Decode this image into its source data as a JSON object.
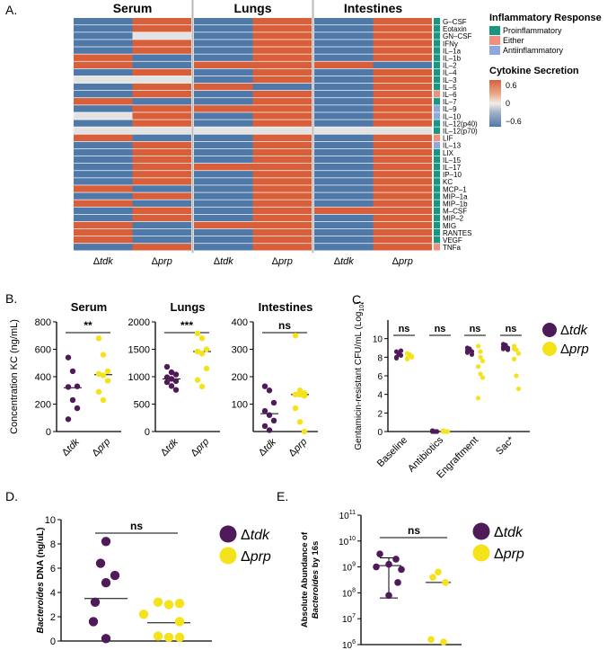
{
  "colors": {
    "high": "#d95f3a",
    "low": "#4f79a8",
    "na": "#e3e3e3",
    "proinflammatory": "#17977f",
    "either": "#ef8f7c",
    "antiinflammatory": "#8ea8dd",
    "tdk": "#4e1b58",
    "prp": "#f4e21b"
  },
  "panel_labels": {
    "a": "A.",
    "b": "B.",
    "c": "C.",
    "d": "D.",
    "e": "E."
  },
  "chart_data": [
    {
      "id": "A",
      "type": "heatmap",
      "groups": [
        "Serum",
        "Lungs",
        "Intestines"
      ],
      "conditions": [
        "Δtdk",
        "Δprp"
      ],
      "rows": [
        "G–CSF",
        "Eotaxin",
        "GN–CSF",
        "IFNγ",
        "IL–1a",
        "IL–1b",
        "IL–2",
        "IL–4",
        "IL–3",
        "IL–5",
        "IL–6",
        "IL–7",
        "IL–9",
        "IL–10",
        "IL–12(p40)",
        "IL–12(p70)",
        "LIF",
        "IL–13",
        "LIX",
        "IL–15",
        "IL–17",
        "IP–10",
        "KC",
        "MCP–1",
        "MIP–1a",
        "MIP–1b",
        "M–CSF",
        "MIP–2",
        "MIG",
        "RANTES",
        "VEGF",
        "TNFa"
      ],
      "row_class": [
        "P",
        "P",
        "P",
        "P",
        "P",
        "P",
        "P",
        "P",
        "P",
        "P",
        "E",
        "P",
        "A",
        "A",
        "P",
        "P",
        "E",
        "A",
        "P",
        "P",
        "P",
        "P",
        "P",
        "P",
        "P",
        "P",
        "P",
        "P",
        "P",
        "P",
        "P",
        "E"
      ],
      "matrix": [
        [
          "L",
          "H",
          "L",
          "H",
          "L",
          "H"
        ],
        [
          "L",
          "H",
          "L",
          "H",
          "L",
          "H"
        ],
        [
          "L",
          "N",
          "L",
          "H",
          "L",
          "H"
        ],
        [
          "L",
          "H",
          "L",
          "H",
          "L",
          "H"
        ],
        [
          "L",
          "H",
          "L",
          "H",
          "L",
          "H"
        ],
        [
          "H",
          "L",
          "L",
          "H",
          "L",
          "H"
        ],
        [
          "H",
          "L",
          "H",
          "H",
          "H",
          "L"
        ],
        [
          "L",
          "H",
          "L",
          "H",
          "L",
          "H"
        ],
        [
          "N",
          "N",
          "L",
          "H",
          "L",
          "H"
        ],
        [
          "L",
          "H",
          "H",
          "L",
          "L",
          "H"
        ],
        [
          "L",
          "H",
          "L",
          "H",
          "L",
          "H"
        ],
        [
          "H",
          "L",
          "L",
          "H",
          "L",
          "H"
        ],
        [
          "L",
          "H",
          "H",
          "H",
          "L",
          "H"
        ],
        [
          "N",
          "H",
          "L",
          "H",
          "L",
          "H"
        ],
        [
          "L",
          "H",
          "L",
          "H",
          "L",
          "H"
        ],
        [
          "N",
          "N",
          "N",
          "N",
          "N",
          "N"
        ],
        [
          "H",
          "L",
          "L",
          "H",
          "L",
          "H"
        ],
        [
          "L",
          "H",
          "L",
          "H",
          "L",
          "H"
        ],
        [
          "L",
          "H",
          "L",
          "H",
          "L",
          "H"
        ],
        [
          "L",
          "H",
          "L",
          "H",
          "L",
          "H"
        ],
        [
          "L",
          "H",
          "H",
          "H",
          "L",
          "H"
        ],
        [
          "L",
          "H",
          "L",
          "H",
          "L",
          "H"
        ],
        [
          "L",
          "H",
          "L",
          "H",
          "L",
          "H"
        ],
        [
          "H",
          "L",
          "L",
          "H",
          "L",
          "H"
        ],
        [
          "L",
          "H",
          "L",
          "H",
          "L",
          "H"
        ],
        [
          "H",
          "L",
          "L",
          "H",
          "L",
          "H"
        ],
        [
          "L",
          "H",
          "L",
          "H",
          "H",
          "H"
        ],
        [
          "L",
          "H",
          "L",
          "H",
          "L",
          "H"
        ],
        [
          "H",
          "L",
          "H",
          "H",
          "L",
          "H"
        ],
        [
          "H",
          "L",
          "L",
          "H",
          "L",
          "H"
        ],
        [
          "H",
          "L",
          "L",
          "H",
          "L",
          "H"
        ],
        [
          "L",
          "H",
          "L",
          "H",
          "L",
          "H"
        ]
      ],
      "legend": {
        "title": "Inflammatory Response",
        "items": [
          {
            "key": "proinflammatory",
            "label": "Proinflammatory"
          },
          {
            "key": "either",
            "label": "Either"
          },
          {
            "key": "antiinflammatory",
            "label": "Antiinflammatory"
          }
        ]
      },
      "colorbar": {
        "title": "Cytokine Secretion",
        "max": "0.6",
        "mid": "0",
        "min": "−0.6"
      }
    },
    {
      "id": "B",
      "type": "scatter",
      "ylabel": "Concentration KC (ng/mL)",
      "panels": [
        {
          "title": "Serum",
          "ylim": [
            0,
            800
          ],
          "ticks": [
            "0",
            "200",
            "400",
            "600",
            "800"
          ],
          "tick_values": [
            0,
            200,
            400,
            600,
            800
          ],
          "sig": "**",
          "groups": [
            {
              "name": "Δtdk",
              "color_key": "tdk",
              "median": 320,
              "values": [
                540,
                440,
                330,
                325,
                230,
                170,
                90
              ]
            },
            {
              "name": "Δprp",
              "color_key": "prp",
              "median": 415,
              "values": [
                680,
                560,
                440,
                420,
                410,
                370,
                290,
                230
              ]
            }
          ]
        },
        {
          "title": "Lungs",
          "ylim": [
            0,
            2000
          ],
          "ticks": [
            "0",
            "500",
            "1000",
            "1500",
            "2000"
          ],
          "tick_values": [
            0,
            500,
            1000,
            1500,
            2000
          ],
          "sig": "***",
          "groups": [
            {
              "name": "Δtdk",
              "color_key": "tdk",
              "median": 960,
              "values": [
                1180,
                1080,
                1040,
                990,
                960,
                920,
                900,
                830,
                760
              ]
            },
            {
              "name": "Δprp",
              "color_key": "prp",
              "median": 1460,
              "values": [
                1790,
                1700,
                1500,
                1460,
                1420,
                1150,
                940,
                820
              ]
            }
          ]
        },
        {
          "title": "Intestines",
          "ylim": [
            0,
            400
          ],
          "ticks": [
            "100",
            "200",
            "300",
            "400"
          ],
          "tick_values": [
            100,
            200,
            300,
            400
          ],
          "sig": "ns",
          "groups": [
            {
              "name": "Δtdk",
              "color_key": "tdk",
              "median": 65,
              "values": [
                165,
                150,
                105,
                75,
                60,
                40,
                20,
                5
              ]
            },
            {
              "name": "Δprp",
              "color_key": "prp",
              "median": 135,
              "values": [
                350,
                150,
                140,
                135,
                135,
                130,
                85,
                35,
                0
              ]
            }
          ]
        }
      ]
    },
    {
      "id": "C",
      "type": "scatter",
      "ylabel": "Gentamicin-resistant CFU/mL (Log",
      "ylabel_sub": "10",
      "ylabel_end": ")",
      "ylim": [
        0,
        12
      ],
      "ticks": [
        "0",
        "2",
        "4",
        "6",
        "8",
        "10"
      ],
      "tick_values": [
        0,
        2,
        4,
        6,
        8,
        10
      ],
      "categories": [
        "Baseline",
        "Antibiotics",
        "Engraftment",
        "Sac*"
      ],
      "sig": [
        "ns",
        "ns",
        "ns",
        "ns"
      ],
      "series": [
        {
          "name": "Δtdk",
          "color_key": "tdk",
          "values": [
            [
              8.6,
              8.4,
              8.2,
              8.0,
              8.3,
              8.7,
              7.9
            ],
            [
              0.1,
              0,
              0,
              0.05,
              0,
              0,
              0
            ],
            [
              9.0,
              8.8,
              8.6,
              8.5,
              8.9,
              8.3,
              8.7
            ],
            [
              9.4,
              9.2,
              9.0,
              8.9,
              9.3,
              8.8,
              9.1
            ]
          ]
        },
        {
          "name": "Δprp",
          "color_key": "prp",
          "values": [
            [
              8.4,
              8.2,
              8.0,
              7.9,
              8.3,
              8.1,
              7.8
            ],
            [
              0.1,
              0,
              0,
              0.05,
              0,
              0,
              0
            ],
            [
              9.2,
              8.0,
              7.6,
              7.0,
              6.2,
              5.8,
              3.6,
              8.6
            ],
            [
              9.2,
              8.8,
              8.4,
              7.8,
              6.0,
              4.6,
              8.9
            ]
          ]
        }
      ],
      "legend": [
        {
          "name": "Δtdk",
          "color_key": "tdk"
        },
        {
          "name": "Δprp",
          "color_key": "prp"
        }
      ]
    },
    {
      "id": "D",
      "type": "scatter",
      "ylabel_italic": "Bacteroides",
      "ylabel_rest": " DNA (ng/uL)",
      "ylim": [
        0,
        10
      ],
      "ticks": [
        "0",
        "2",
        "4",
        "6",
        "8",
        "10"
      ],
      "tick_values": [
        0,
        2,
        4,
        6,
        8,
        10
      ],
      "sig": "ns",
      "groups": [
        {
          "name": "Δtdk",
          "color_key": "tdk",
          "mean": 3.5,
          "values": [
            8.2,
            6.4,
            5.4,
            4.8,
            3.2,
            1.6,
            0.2
          ]
        },
        {
          "name": "Δprp",
          "color_key": "prp",
          "mean": 1.5,
          "values": [
            3.2,
            3.1,
            3.0,
            2.2,
            1.6,
            0.4,
            0.3,
            0.3
          ]
        }
      ],
      "legend": [
        {
          "name": "Δtdk",
          "color_key": "tdk"
        },
        {
          "name": "Δprp",
          "color_key": "prp"
        }
      ]
    },
    {
      "id": "E",
      "type": "scatter",
      "ylabel_pre": "Absolute Abundance of",
      "ylabel_italic": "Bacteroides",
      "ylabel_post": " by 16s",
      "yscale": "log",
      "ylim_exp": [
        6,
        11
      ],
      "ticks": [
        "10",
        "10",
        "10",
        "10",
        "10",
        "10"
      ],
      "tick_sup": [
        "6",
        "7",
        "8",
        "9",
        "10",
        "11"
      ],
      "tick_exp": [
        6,
        7,
        8,
        9,
        10,
        11
      ],
      "sig": "ns",
      "groups": [
        {
          "name": "Δtdk",
          "color_key": "tdk",
          "center_exp": 9.05,
          "err_exp": [
            7.8,
            9.35
          ],
          "values_exp": [
            9.5,
            9.3,
            9.1,
            9.0,
            8.9,
            8.4,
            7.9
          ]
        },
        {
          "name": "Δprp",
          "color_key": "prp",
          "center_exp": 8.4,
          "err_exp": [],
          "values_exp": [
            8.8,
            8.6,
            8.4,
            6.2,
            6.1
          ]
        }
      ],
      "legend": [
        {
          "name": "Δtdk",
          "color_key": "tdk"
        },
        {
          "name": "Δprp",
          "color_key": "prp"
        }
      ]
    }
  ]
}
